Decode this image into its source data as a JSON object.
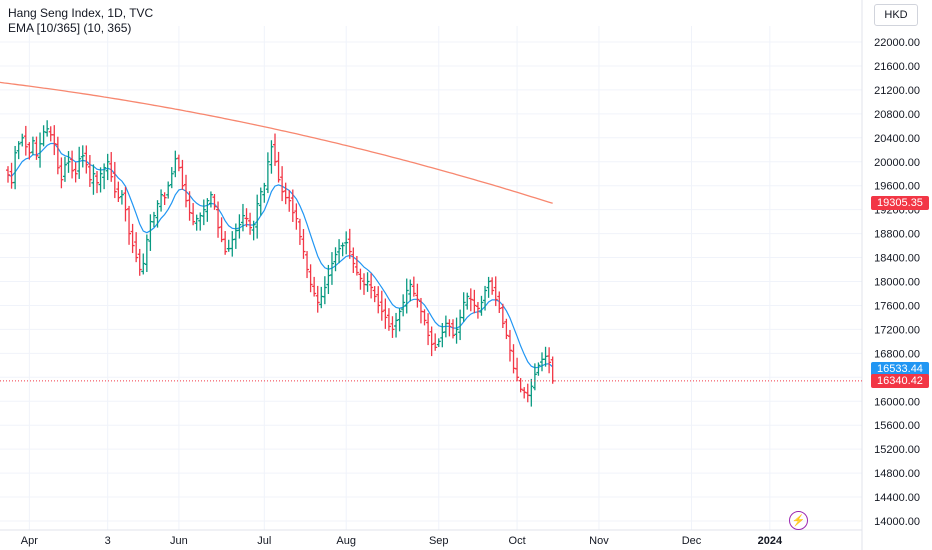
{
  "chart_data": {
    "type": "ohlc",
    "title": "Hang Seng Index, 1D, TVC",
    "indicator": "EMA [10/365] (10, 365)",
    "currency": "HKD",
    "ylim": [
      14000,
      22400
    ],
    "y_ticks": [
      "22000.00",
      "21600.00",
      "21200.00",
      "20800.00",
      "20400.00",
      "20000.00",
      "19600.00",
      "19200.00",
      "18800.00",
      "18400.00",
      "18000.00",
      "17600.00",
      "17200.00",
      "16800.00",
      "16400.00",
      "16000.00",
      "15600.00",
      "15200.00",
      "14800.00",
      "14400.00",
      "14000.00"
    ],
    "x_ticks": [
      {
        "label": "Apr",
        "bar": 6
      },
      {
        "label": "3",
        "bar": 28
      },
      {
        "label": "Jun",
        "bar": 48
      },
      {
        "label": "Jul",
        "bar": 72
      },
      {
        "label": "Aug",
        "bar": 95
      },
      {
        "label": "Sep",
        "bar": 121
      },
      {
        "label": "Oct",
        "bar": 143
      },
      {
        "label": "Nov",
        "bar": 166
      },
      {
        "label": "Dec",
        "bar": 192
      },
      {
        "label": "2024",
        "bar": 214
      }
    ],
    "last_price": "16340.42",
    "ema10_last": "16533.44",
    "ema365_last": "19305.35",
    "closes": [
      19780,
      19650,
      20150,
      20300,
      20400,
      20250,
      20150,
      20350,
      20100,
      20300,
      20500,
      20550,
      20450,
      20300,
      19900,
      19700,
      19950,
      20000,
      19850,
      19800,
      20050,
      20100,
      19950,
      19700,
      19800,
      19650,
      19800,
      19900,
      20000,
      19750,
      19500,
      19400,
      19450,
      19200,
      18800,
      18600,
      18400,
      18200,
      18300,
      18700,
      19000,
      19100,
      19300,
      19450,
      19400,
      19600,
      19800,
      20050,
      19900,
      19600,
      19350,
      19150,
      19000,
      19050,
      19100,
      19200,
      19350,
      19450,
      19250,
      18900,
      18700,
      18500,
      18550,
      18700,
      18850,
      18950,
      19100,
      19050,
      18900,
      18950,
      19300,
      19500,
      19600,
      20000,
      20250,
      20000,
      19700,
      19500,
      19400,
      19350,
      19150,
      19050,
      18750,
      18500,
      18200,
      17950,
      17800,
      17650,
      17750,
      17900,
      18100,
      18300,
      18450,
      18550,
      18600,
      18650,
      18500,
      18300,
      18150,
      18050,
      17950,
      18000,
      17900,
      17750,
      17600,
      17500,
      17400,
      17250,
      17200,
      17350,
      17500,
      17650,
      17850,
      17950,
      17800,
      17700,
      17500,
      17350,
      17100,
      16950,
      16900,
      17000,
      17150,
      17300,
      17250,
      17100,
      17200,
      17400,
      17650,
      17750,
      17700,
      17600,
      17550,
      17650,
      17850,
      18000,
      17850,
      17700,
      17550,
      17300,
      17100,
      16850,
      16550,
      16400,
      16200,
      16150,
      16100,
      16250,
      16450,
      16600,
      16700,
      16750,
      16650,
      16340.42
    ]
  }
}
